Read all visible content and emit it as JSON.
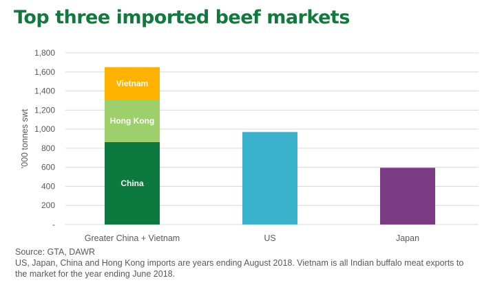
{
  "title": "Top three imported beef markets",
  "chart_data": {
    "type": "bar",
    "stacked": true,
    "ylabel": "'000 tonnes swt",
    "ylim": [
      0,
      1800
    ],
    "yticks": [
      0,
      200,
      400,
      600,
      800,
      1000,
      1200,
      1400,
      1600,
      1800
    ],
    "yticklabels": [
      "-",
      "200",
      "400",
      "600",
      "800",
      "1,000",
      "1,200",
      "1,400",
      "1,600",
      "1,800"
    ],
    "grid": true,
    "legend": "none",
    "categories": [
      "Greater China + Vietnam",
      "US",
      "Japan"
    ],
    "bars": [
      {
        "category": "Greater China + Vietnam",
        "segments": [
          {
            "label": "China",
            "value": 865,
            "color": "#0c7a3e"
          },
          {
            "label": "Hong Kong",
            "value": 445,
            "color": "#9dd06a"
          },
          {
            "label": "Vietnam",
            "value": 340,
            "color": "#ffb300"
          }
        ]
      },
      {
        "category": "US",
        "segments": [
          {
            "label": "",
            "value": 970,
            "color": "#3bb2cb"
          }
        ]
      },
      {
        "category": "Japan",
        "segments": [
          {
            "label": "",
            "value": 595,
            "color": "#7a3b82"
          }
        ]
      }
    ]
  },
  "footnote": {
    "source": "Source: GTA, DAWR",
    "note": "US, Japan, China and Hong Kong imports are years ending August 2018. Vietnam is all Indian buffalo meat exports to the market for the year ending June 2018."
  }
}
